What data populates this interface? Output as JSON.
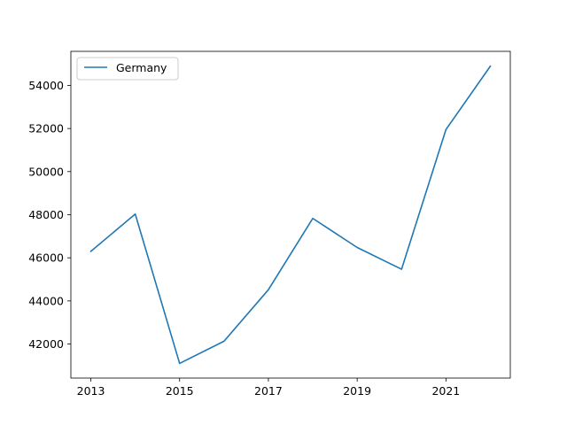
{
  "chart_data": {
    "type": "line",
    "title": "",
    "xlabel": "",
    "ylabel": "",
    "x": [
      2013,
      2014,
      2015,
      2016,
      2017,
      2018,
      2019,
      2020,
      2021,
      2022
    ],
    "xlim": [
      2012.55,
      2022.45
    ],
    "ylim": [
      40420,
      55580
    ],
    "xticks": [
      2013,
      2015,
      2017,
      2019,
      2021
    ],
    "yticks": [
      42000,
      44000,
      46000,
      48000,
      50000,
      52000,
      54000
    ],
    "grid": false,
    "legend_position": "top-left",
    "series": [
      {
        "name": "Germany",
        "color": "#1f77b4",
        "values": [
          46300,
          48030,
          41100,
          42130,
          44520,
          47830,
          46480,
          45470,
          51950,
          54890
        ]
      }
    ]
  }
}
